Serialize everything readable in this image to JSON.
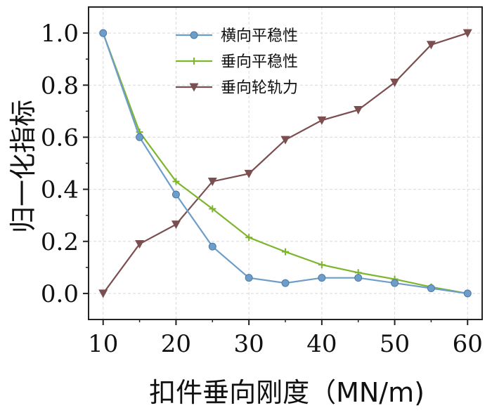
{
  "chart_data": {
    "type": "line",
    "xlabel": "扣件垂向刚度（MN/m)",
    "ylabel": "归一化指标",
    "xlim": [
      8,
      62
    ],
    "ylim": [
      -0.1,
      1.1
    ],
    "grid": true,
    "legend_position": "top-center",
    "x_ticks": [
      10,
      20,
      30,
      40,
      50,
      60
    ],
    "x_tick_labels": [
      "10",
      "20",
      "30",
      "40",
      "50",
      "60"
    ],
    "y_ticks": [
      0.0,
      0.2,
      0.4,
      0.6,
      0.8,
      1.0
    ],
    "y_tick_labels": [
      "0.0",
      "0.2",
      "0.4",
      "0.6",
      "0.8",
      "1.0"
    ],
    "x": [
      10,
      15,
      20,
      25,
      30,
      35,
      40,
      45,
      50,
      55,
      60
    ],
    "series": [
      {
        "name": "横向平稳性",
        "color": "#6d9ec9",
        "marker": "circle",
        "values": [
          1.0,
          0.6,
          0.38,
          0.18,
          0.06,
          0.04,
          0.06,
          0.06,
          0.04,
          0.02,
          0.0
        ]
      },
      {
        "name": "垂向平稳性",
        "color": "#7db52c",
        "marker": "plus",
        "values": [
          1.0,
          0.62,
          0.43,
          0.325,
          0.215,
          0.16,
          0.11,
          0.08,
          0.055,
          0.025,
          0.0
        ]
      },
      {
        "name": "垂向轮轨力",
        "color": "#7b4f50",
        "marker": "triangle-down",
        "values": [
          0.0,
          0.19,
          0.265,
          0.43,
          0.46,
          0.59,
          0.665,
          0.705,
          0.81,
          0.955,
          1.0
        ]
      }
    ]
  }
}
